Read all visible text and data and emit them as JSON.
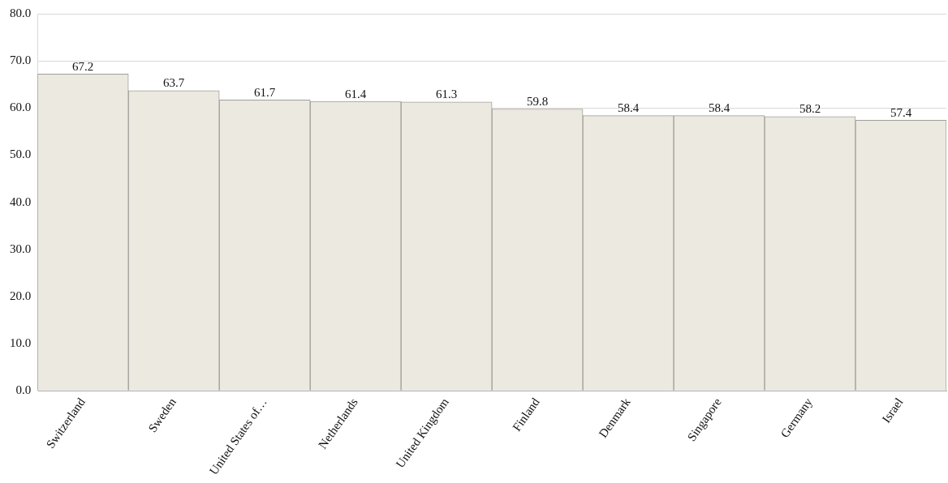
{
  "chart_data": {
    "type": "bar",
    "categories": [
      "Switzerland",
      "Sweden",
      "United States of…",
      "Netherlands",
      "United Kingdom",
      "Finland",
      "Denmark",
      "Singapore",
      "Germany",
      "Israel"
    ],
    "values": [
      67.2,
      63.7,
      61.7,
      61.4,
      61.3,
      59.8,
      58.4,
      58.4,
      58.2,
      57.4
    ],
    "color": "#ece9e0",
    "ylim": [
      0,
      80
    ],
    "yticks": [
      {
        "value": 0,
        "label": "0.0"
      },
      {
        "value": 10,
        "label": "10.0"
      },
      {
        "value": 20,
        "label": "20.0"
      },
      {
        "value": 30,
        "label": "30.0"
      },
      {
        "value": 40,
        "label": "40.0"
      },
      {
        "value": 50,
        "label": "50.0"
      },
      {
        "value": 60,
        "label": "60.0"
      },
      {
        "value": 70,
        "label": "70.0"
      },
      {
        "value": 80,
        "label": "80.0"
      }
    ],
    "grid": "y",
    "legend": false,
    "data_labels": true
  }
}
